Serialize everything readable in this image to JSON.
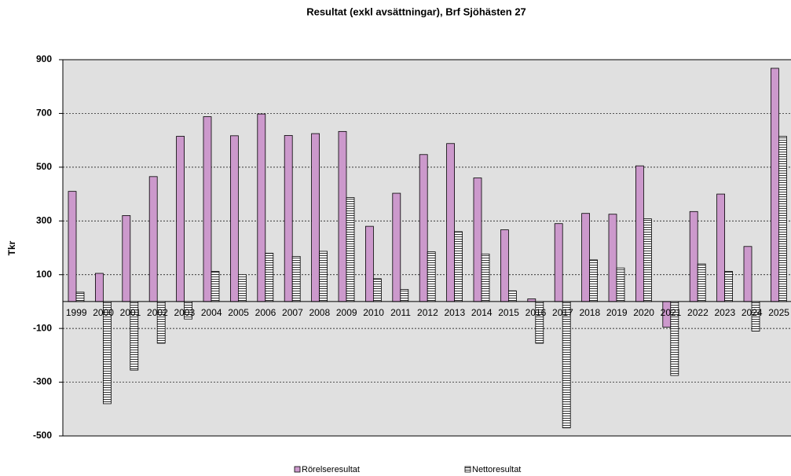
{
  "chart_data": {
    "type": "bar",
    "title": "Resultat (exkl avsättningar), Brf Sjöhästen 27",
    "y_label": "Tkr",
    "categories": [
      "1999",
      "2000",
      "2001",
      "2002",
      "2003",
      "2004",
      "2005",
      "2006",
      "2007",
      "2008",
      "2009",
      "2010",
      "2011",
      "2012",
      "2013",
      "2014",
      "2015",
      "2016",
      "2017",
      "2018",
      "2019",
      "2020",
      "2021",
      "2022",
      "2023",
      "2024",
      "2025"
    ],
    "series": [
      {
        "name": "Rörelseresultat",
        "color": "#cc99cc",
        "values": [
          410,
          105,
          320,
          465,
          615,
          688,
          617,
          698,
          618,
          625,
          633,
          280,
          403,
          547,
          588,
          460,
          267,
          10,
          290,
          328,
          325,
          505,
          -95,
          335,
          400,
          205,
          868
        ]
      },
      {
        "name": "Nettoresultat",
        "color": "#ffffff",
        "values": [
          35,
          -380,
          -255,
          -155,
          -65,
          112,
          100,
          180,
          168,
          187,
          387,
          85,
          45,
          185,
          260,
          177,
          40,
          -155,
          -470,
          155,
          125,
          308,
          -275,
          140,
          112,
          -110,
          615
        ]
      }
    ],
    "ylim": [
      -500,
      900
    ],
    "yticks": [
      -500,
      -300,
      -100,
      100,
      300,
      500,
      700,
      900
    ],
    "grid": true,
    "legend": "bottom"
  }
}
